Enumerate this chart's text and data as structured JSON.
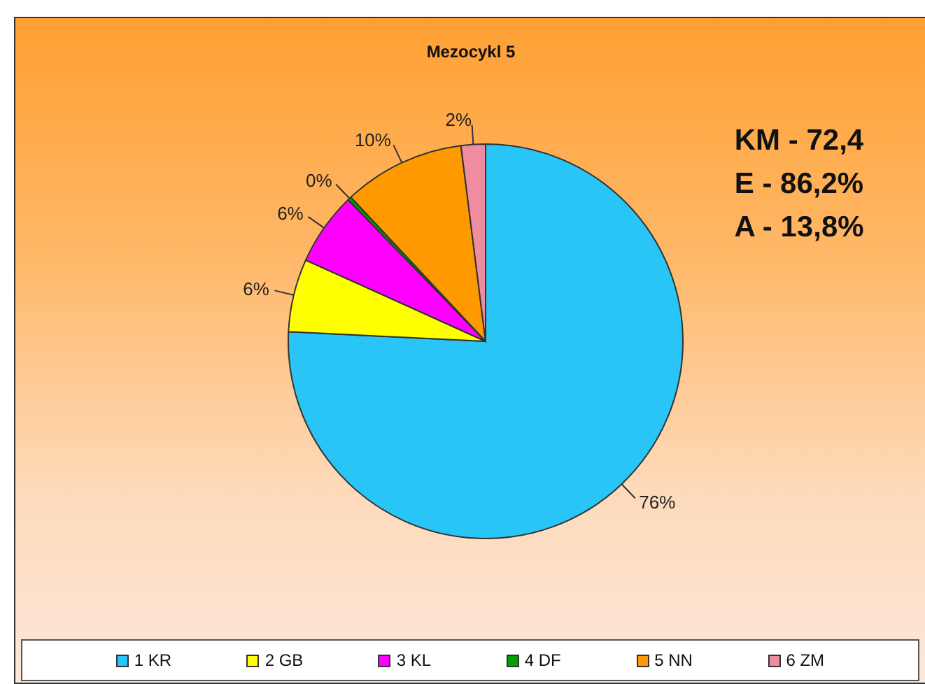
{
  "chart_data": {
    "type": "pie",
    "title": "Mezocykl 5",
    "categories": [
      "1 KR",
      "2 GB",
      "3 KL",
      "4 DF",
      "5 NN",
      "6 ZM"
    ],
    "values": [
      76,
      6,
      6,
      0.3,
      10,
      2
    ],
    "value_labels": [
      "76%",
      "6%",
      "6%",
      "0%",
      "10%",
      "2%"
    ],
    "colors": [
      "#29c5f6",
      "#ffff00",
      "#ff00ff",
      "#00a000",
      "#ff9900",
      "#f08ca0"
    ],
    "annotations": [
      "KM - 72,4",
      "E - 86,2%",
      "A - 13,8%"
    ],
    "legend": "bottom"
  }
}
